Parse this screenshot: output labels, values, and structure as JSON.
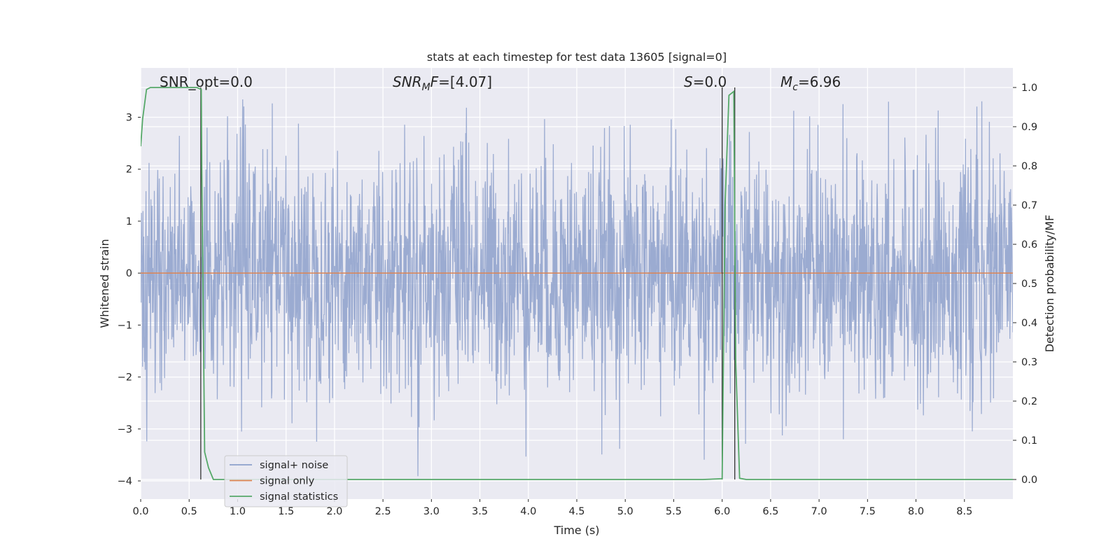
{
  "chart_data": {
    "type": "line",
    "title": "stats at each timestep for test data 13605 [signal=0]",
    "xlabel": "Time (s)",
    "ylabel_left": "Whitened strain",
    "ylabel_right": "Detection probability/MF",
    "xlim": [
      0.0,
      9.0
    ],
    "ylim_left": [
      -4.35,
      3.95
    ],
    "ylim_right": [
      -0.05,
      1.05
    ],
    "x_ticks": [
      "0.0",
      "0.5",
      "1.0",
      "1.5",
      "2.0",
      "2.5",
      "3.0",
      "3.5",
      "4.0",
      "4.5",
      "5.0",
      "5.5",
      "6.0",
      "6.5",
      "7.0",
      "7.5",
      "8.0",
      "8.5"
    ],
    "y_left_ticks": [
      "−4",
      "−3",
      "−2",
      "−1",
      "0",
      "1",
      "2",
      "3"
    ],
    "y_right_ticks": [
      "0.0",
      "0.1",
      "0.2",
      "0.3",
      "0.4",
      "0.5",
      "0.6",
      "0.7",
      "0.8",
      "0.9",
      "1.0"
    ],
    "grid": true,
    "legend_position": "lower-left",
    "annotations": {
      "snr_opt": "SNR_opt=0.0",
      "snr_mf_main": "SNR",
      "snr_mf_sub": "M",
      "snr_mf_tail": "F=[4.07]",
      "s_main": "S",
      "s_tail": "=0.0",
      "mc_main": "M",
      "mc_sub": "c",
      "mc_tail": "=6.96"
    },
    "series": [
      {
        "name": "signal+ noise",
        "color": "#8da0cb",
        "axis": "left",
        "description_of_shape": "whitened noise, roughly Gaussian, typical range -2.5 to 2.5, extremes near -4.0 and 3.4",
        "min": -4.0,
        "max": 3.35
      },
      {
        "name": "signal only",
        "color": "#dd8452",
        "axis": "left",
        "x": [
          0.0,
          9.0
        ],
        "y": [
          0.0,
          0.0
        ]
      },
      {
        "name": "signal statistics",
        "color": "#55a868",
        "axis": "right",
        "x": [
          0.0,
          0.02,
          0.06,
          0.1,
          0.2,
          0.3,
          0.4,
          0.5,
          0.58,
          0.625,
          0.63,
          0.66,
          0.7,
          0.75,
          1.0,
          2.0,
          3.0,
          4.0,
          5.0,
          5.8,
          6.0,
          6.03,
          6.07,
          6.12,
          6.14,
          6.18,
          6.25,
          7.0,
          8.0,
          9.0
        ],
        "y": [
          0.85,
          0.92,
          0.995,
          1.0,
          1.0,
          1.0,
          1.0,
          1.0,
          1.0,
          0.995,
          0.8,
          0.07,
          0.03,
          0.0,
          0.0,
          0.0,
          0.0,
          0.0,
          0.0,
          0.0,
          0.002,
          0.7,
          0.98,
          0.99,
          0.3,
          0.003,
          0.0,
          0.0,
          0.0,
          0.0
        ]
      }
    ],
    "vertical_lines_x": [
      0.62,
      6.0,
      6.13
    ],
    "vertical_lines_color": "#333333"
  },
  "colors": {
    "axes_bg": "#eaeaf2",
    "grid": "#ffffff"
  }
}
